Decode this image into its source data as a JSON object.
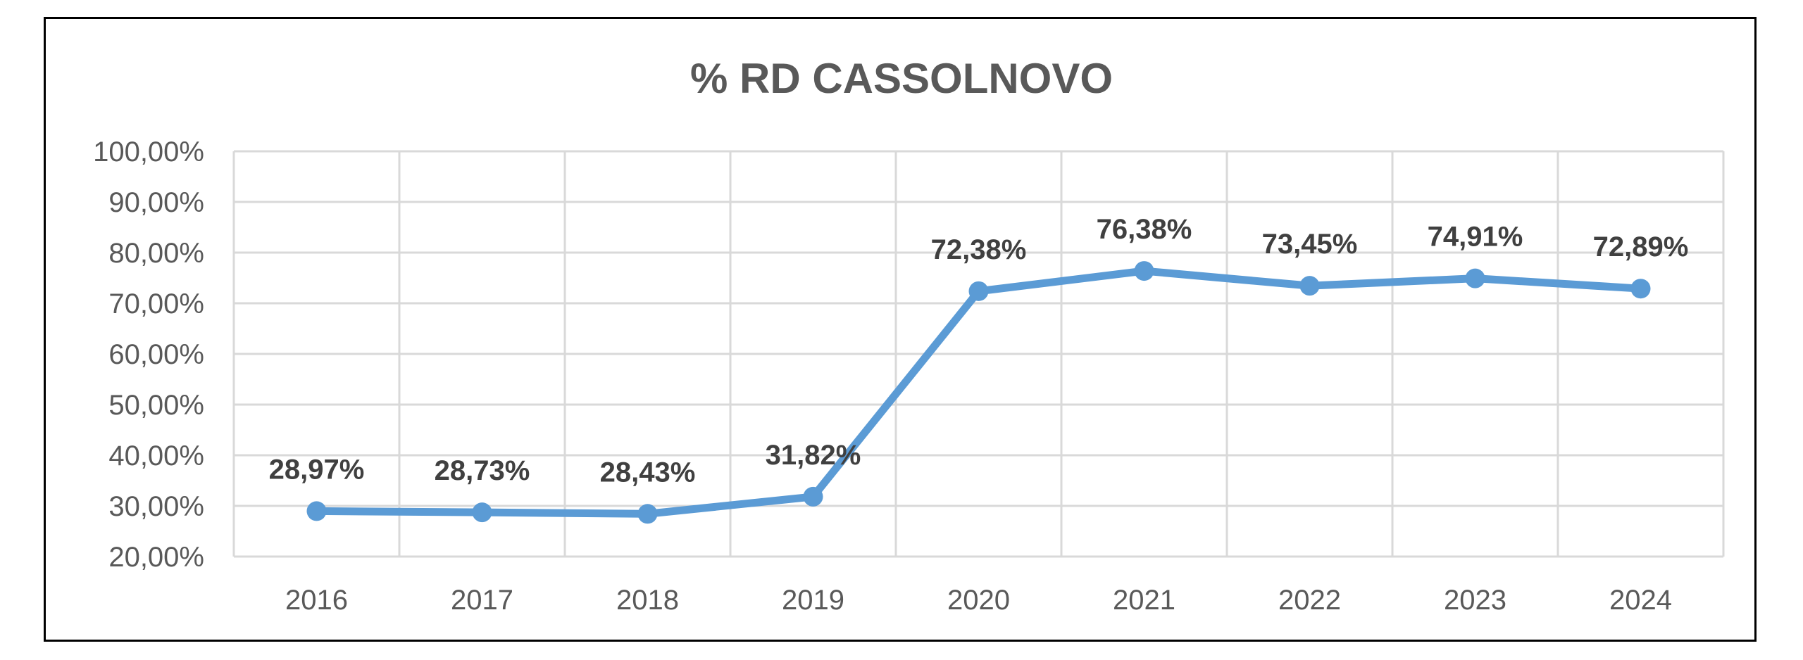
{
  "chart_data": {
    "type": "line",
    "title": "% RD CASSOLNOVO",
    "xlabel": "",
    "ylabel": "",
    "categories": [
      "2016",
      "2017",
      "2018",
      "2019",
      "2020",
      "2021",
      "2022",
      "2023",
      "2024"
    ],
    "series": [
      {
        "values": [
          28.97,
          28.73,
          28.43,
          31.82,
          72.38,
          76.38,
          73.45,
          74.91,
          72.89
        ],
        "data_labels": [
          "28,97%",
          "28,73%",
          "28,43%",
          "31,82%",
          "72,38%",
          "76,38%",
          "73,45%",
          "74,91%",
          "72,89%"
        ],
        "color": "#5B9BD5"
      }
    ],
    "ylim": [
      20,
      100
    ],
    "y_ticks": [
      20,
      30,
      40,
      50,
      60,
      70,
      80,
      90,
      100
    ],
    "y_tick_labels": [
      "20,00%",
      "30,00%",
      "40,00%",
      "50,00%",
      "60,00%",
      "70,00%",
      "80,00%",
      "90,00%",
      "100,00%"
    ],
    "grid": true,
    "grid_color": "#D9D9D9",
    "legend": "none"
  }
}
